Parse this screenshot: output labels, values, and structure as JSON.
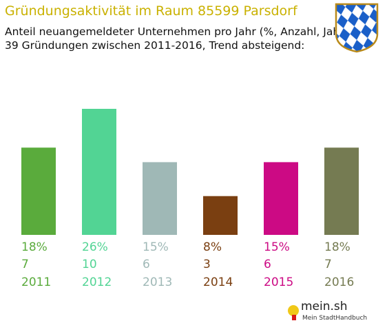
{
  "header": {
    "title": "Gründungsaktivität im Raum 85599 Parsdorf",
    "subtitle_line1": "Anteil neuangemeldeter Unternehmen pro Jahr (%, Anzahl, Jahr)",
    "subtitle_line2": "39 Gründungen zwischen 2011-2016, Trend absteigend:"
  },
  "crest": {
    "icon": "bavarian-lozenges-coat-of-arms",
    "colors": [
      "#ffffff",
      "#1a5fc8"
    ]
  },
  "chart_data": {
    "type": "bar",
    "categories": [
      "2011",
      "2012",
      "2013",
      "2014",
      "2015",
      "2016"
    ],
    "values": [
      18,
      26,
      15,
      8,
      15,
      18
    ],
    "percent_labels": [
      "18%",
      "26%",
      "15%",
      "8%",
      "15%",
      "18%"
    ],
    "counts": [
      7,
      10,
      6,
      3,
      6,
      7
    ],
    "colors": [
      "#5aab3c",
      "#52d494",
      "#9fb8b6",
      "#7a3f11",
      "#cc0a84",
      "#757b52"
    ],
    "title": "Gründungsaktivität im Raum 85599 Parsdorf",
    "xlabel": "",
    "ylabel": "",
    "ylim": [
      0,
      26
    ],
    "grid": false,
    "legend": "none"
  },
  "footer": {
    "brand": "mein.sh",
    "tagline": "Mein StadtHandbuch"
  }
}
